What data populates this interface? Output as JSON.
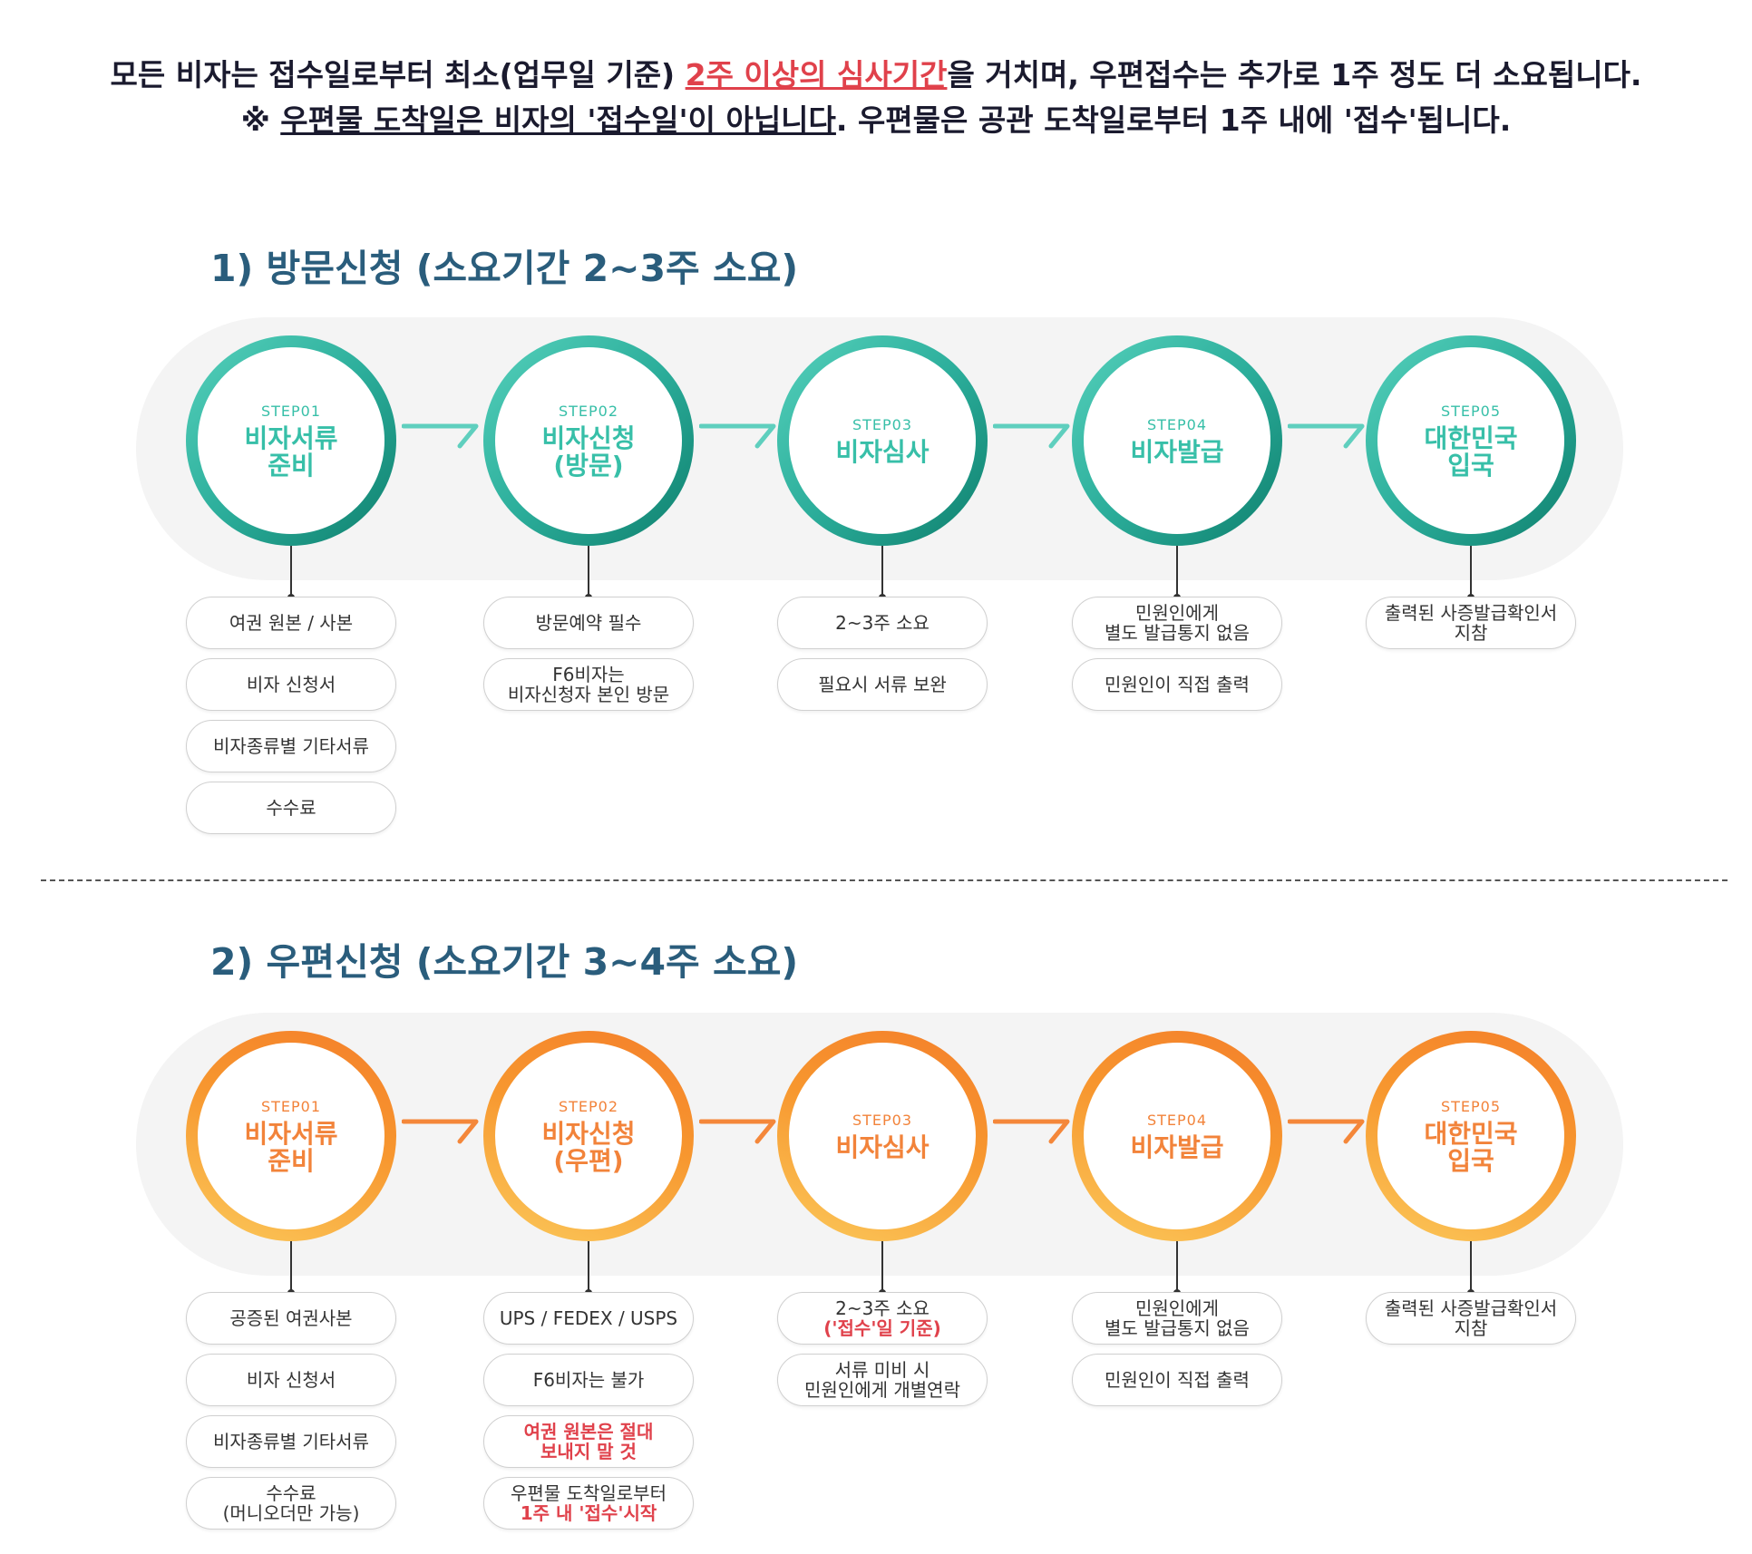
{
  "notice": {
    "line1_a": "모든 비자는 접수일로부터 최소(업무일 기준) ",
    "line1_highlight": "2주 이상의 심사기간",
    "line1_b": "을 거치며, 우편접수는 추가로 1주 정도 더 소요됩니다.",
    "line2_prefix": "※ ",
    "line2_underlined": "우편물 도착일은 비자의 '접수일'이 아닙니다",
    "line2_rest": ". 우편물은 공관 도착일로부터 1주 내에 '접수'됩니다."
  },
  "colors": {
    "teal": "#2cae9b",
    "orange": "#f7972f",
    "red": "#e0414b",
    "title": "#2a5d7c"
  },
  "sections": [
    {
      "title": "1) 방문신청 (소요기간 2~3주 소요)",
      "steps": [
        {
          "label": "STEP01",
          "title": "비자서류\n준비",
          "notes": [
            {
              "text": "여권 원본 / 사본"
            },
            {
              "text": "비자 신청서"
            },
            {
              "text": "비자종류별 기타서류"
            },
            {
              "text": "수수료"
            }
          ]
        },
        {
          "label": "STEP02",
          "title": "비자신청\n(방문)",
          "notes": [
            {
              "text": "방문예약 필수"
            },
            {
              "text": "F6비자는\n비자신청자 본인 방문"
            }
          ]
        },
        {
          "label": "STEP03",
          "title": "비자심사",
          "notes": [
            {
              "text": "2~3주 소요"
            },
            {
              "text": "필요시 서류 보완"
            }
          ]
        },
        {
          "label": "STEP04",
          "title": "비자발급",
          "notes": [
            {
              "text": "민원인에게\n별도 발급통지 없음"
            },
            {
              "text": "민원인이 직접 출력"
            }
          ]
        },
        {
          "label": "STEP05",
          "title": "대한민국\n입국",
          "notes": [
            {
              "text": "출력된 사증발급확인서\n지참"
            }
          ]
        }
      ]
    },
    {
      "title": "2) 우편신청 (소요기간 3~4주 소요)",
      "steps": [
        {
          "label": "STEP01",
          "title": "비자서류\n준비",
          "notes": [
            {
              "text": "공증된 여권사본"
            },
            {
              "text": "비자 신청서"
            },
            {
              "text": "비자종류별 기타서류"
            },
            {
              "text": "수수료\n(머니오더만 가능)"
            }
          ]
        },
        {
          "label": "STEP02",
          "title": "비자신청\n(우편)",
          "notes": [
            {
              "text": "UPS / FEDEX / USPS"
            },
            {
              "text": "F6비자는 불가"
            },
            {
              "text": "여권 원본은 절대\n보내지 말 것",
              "style": "red"
            },
            {
              "text": "우편물 도착일로부터",
              "red_line": "1주 내 '접수'시작"
            }
          ]
        },
        {
          "label": "STEP03",
          "title": "비자심사",
          "notes": [
            {
              "text": "2~3주 소요",
              "red_line": "('접수'일 기준)"
            },
            {
              "text": "서류 미비 시\n민원인에게 개별연락"
            }
          ]
        },
        {
          "label": "STEP04",
          "title": "비자발급",
          "notes": [
            {
              "text": "민원인에게\n별도 발급통지 없음"
            },
            {
              "text": "민원인이 직접 출력"
            }
          ]
        },
        {
          "label": "STEP05",
          "title": "대한민국\n입국",
          "notes": [
            {
              "text": "출력된 사증발급확인서\n지참"
            }
          ]
        }
      ]
    }
  ]
}
